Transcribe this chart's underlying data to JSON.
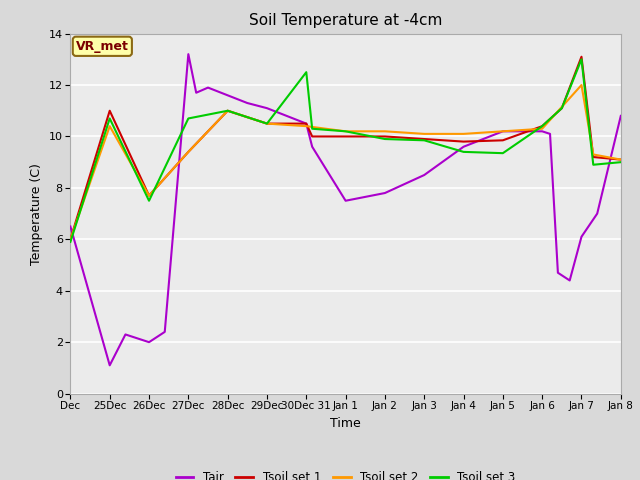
{
  "title": "Soil Temperature at -4cm",
  "xlabel": "Time",
  "ylabel": "Temperature (C)",
  "ylim": [
    0,
    14
  ],
  "annotation_label": "VR_met",
  "x_labels": [
    "Dec",
    "25Dec",
    "26Dec",
    "27Dec",
    "28Dec",
    "29Dec",
    "30Dec 31",
    "Jan 1",
    "Jan 2",
    "Jan 3",
    "Jan 4",
    "Jan 5",
    "Jan 6",
    "Jan 7",
    "Jan 8"
  ],
  "x_ticks": [
    0,
    1,
    2,
    3,
    4,
    5,
    6,
    7,
    8,
    9,
    10,
    11,
    12,
    13,
    14
  ],
  "Tair": {
    "x": [
      0,
      1,
      1.4,
      2,
      2.4,
      3,
      3.2,
      3.5,
      4,
      4.5,
      5,
      6,
      6.15,
      7,
      8,
      9,
      10,
      11,
      12,
      12.2,
      12.4,
      12.7,
      13,
      13.4,
      14
    ],
    "y": [
      6.5,
      1.1,
      2.3,
      2.0,
      2.4,
      13.2,
      11.7,
      11.9,
      11.6,
      11.3,
      11.1,
      10.5,
      9.6,
      7.5,
      7.8,
      8.5,
      9.6,
      10.2,
      10.2,
      10.1,
      4.7,
      4.4,
      6.1,
      7.0,
      10.8
    ],
    "color": "#aa00cc",
    "lw": 1.5
  },
  "Tsoil1": {
    "x": [
      0,
      1,
      2,
      3,
      4,
      5,
      6,
      6.15,
      7,
      8,
      9,
      10,
      11,
      12,
      12.5,
      13,
      13.3,
      14
    ],
    "y": [
      6.0,
      11.0,
      7.7,
      9.4,
      11.0,
      10.5,
      10.5,
      10.0,
      10.0,
      10.0,
      9.9,
      9.8,
      9.85,
      10.4,
      11.1,
      13.1,
      9.2,
      9.1
    ],
    "color": "#cc0000",
    "lw": 1.5
  },
  "Tsoil2": {
    "x": [
      0,
      1,
      2,
      3,
      4,
      5,
      6,
      7,
      8,
      9,
      10,
      11,
      12,
      12.5,
      13,
      13.3,
      14
    ],
    "y": [
      6.0,
      10.4,
      7.7,
      9.4,
      11.0,
      10.5,
      10.4,
      10.2,
      10.2,
      10.1,
      10.1,
      10.2,
      10.3,
      11.15,
      12.0,
      9.3,
      9.1
    ],
    "color": "#ff9900",
    "lw": 1.5
  },
  "Tsoil3": {
    "x": [
      0,
      1,
      2,
      3,
      4,
      5,
      6,
      6.15,
      7,
      8,
      9,
      10,
      11,
      12,
      12.5,
      13,
      13.3,
      14
    ],
    "y": [
      5.9,
      10.7,
      7.5,
      10.7,
      11.0,
      10.5,
      12.5,
      10.3,
      10.2,
      9.9,
      9.85,
      9.4,
      9.35,
      10.4,
      11.1,
      13.0,
      8.9,
      9.0
    ],
    "color": "#00cc00",
    "lw": 1.5
  },
  "bg_color": "#d9d9d9",
  "plot_bg": "#ebebeb",
  "grid_color": "#ffffff",
  "legend_entries": [
    "Tair",
    "Tsoil set 1",
    "Tsoil set 2",
    "Tsoil set 3"
  ],
  "legend_colors": [
    "#aa00cc",
    "#cc0000",
    "#ff9900",
    "#00cc00"
  ]
}
